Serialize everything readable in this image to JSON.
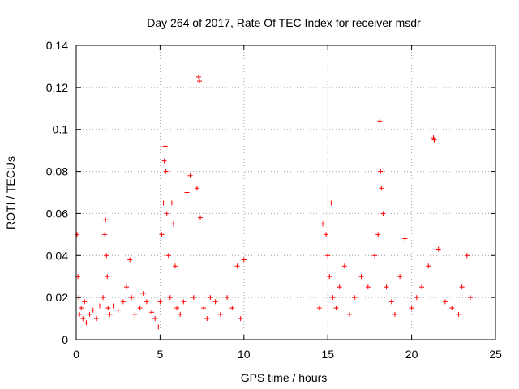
{
  "chart_data": {
    "type": "scatter",
    "title": "Day 264 of 2017, Rate Of TEC Index for receiver msdr",
    "xlabel": "GPS time / hours",
    "ylabel": "ROTI / TECUs",
    "xlim": [
      0,
      25
    ],
    "ylim": [
      0,
      0.14
    ],
    "xticks": [
      0,
      5,
      10,
      15,
      20,
      25
    ],
    "yticks": [
      0,
      0.02,
      0.04,
      0.06,
      0.08,
      0.1,
      0.12,
      0.14
    ],
    "xtick_labels": [
      "0",
      "5",
      "10",
      "15",
      "20",
      "25"
    ],
    "ytick_labels": [
      "0",
      "0.02",
      "0.04",
      "0.06",
      "0.08",
      "0.1",
      "0.12",
      "0.14"
    ],
    "grid": true,
    "marker": "+",
    "color": "#ff0000",
    "series": [
      {
        "name": "ROTI",
        "x": [
          0.0,
          0.05,
          0.1,
          0.15,
          0.2,
          0.3,
          0.4,
          0.5,
          0.6,
          0.8,
          1.0,
          1.2,
          1.4,
          1.6,
          1.7,
          1.75,
          1.8,
          1.85,
          1.9,
          2.0,
          2.2,
          2.5,
          2.8,
          3.0,
          3.2,
          3.3,
          3.5,
          3.8,
          4.0,
          4.2,
          4.5,
          4.7,
          4.9,
          5.0,
          5.1,
          5.2,
          5.25,
          5.3,
          5.35,
          5.4,
          5.5,
          5.6,
          5.7,
          5.8,
          5.9,
          6.0,
          6.2,
          6.4,
          6.6,
          6.8,
          7.0,
          7.2,
          7.3,
          7.35,
          7.4,
          7.6,
          7.8,
          8.0,
          8.3,
          8.6,
          9.0,
          9.3,
          9.6,
          9.8,
          10.0,
          14.5,
          14.7,
          14.9,
          15.0,
          15.1,
          15.2,
          15.3,
          15.5,
          15.7,
          16.0,
          16.3,
          16.6,
          17.0,
          17.4,
          17.8,
          18.0,
          18.1,
          18.15,
          18.2,
          18.3,
          18.5,
          18.8,
          19.0,
          19.3,
          19.6,
          20.0,
          20.3,
          20.6,
          21.0,
          21.3,
          21.35,
          21.6,
          22.0,
          22.4,
          22.8,
          23.0,
          23.3,
          23.5
        ],
        "y": [
          0.065,
          0.05,
          0.03,
          0.02,
          0.012,
          0.015,
          0.01,
          0.018,
          0.008,
          0.012,
          0.014,
          0.01,
          0.016,
          0.02,
          0.05,
          0.057,
          0.04,
          0.03,
          0.015,
          0.012,
          0.016,
          0.014,
          0.018,
          0.025,
          0.038,
          0.02,
          0.012,
          0.015,
          0.022,
          0.018,
          0.013,
          0.01,
          0.006,
          0.018,
          0.05,
          0.065,
          0.085,
          0.092,
          0.08,
          0.06,
          0.04,
          0.02,
          0.065,
          0.055,
          0.035,
          0.015,
          0.012,
          0.018,
          0.07,
          0.078,
          0.02,
          0.072,
          0.125,
          0.123,
          0.058,
          0.015,
          0.01,
          0.02,
          0.018,
          0.012,
          0.02,
          0.015,
          0.035,
          0.01,
          0.038,
          0.015,
          0.055,
          0.05,
          0.04,
          0.03,
          0.065,
          0.02,
          0.015,
          0.025,
          0.035,
          0.012,
          0.02,
          0.03,
          0.025,
          0.04,
          0.05,
          0.104,
          0.08,
          0.072,
          0.06,
          0.025,
          0.018,
          0.012,
          0.03,
          0.048,
          0.015,
          0.02,
          0.025,
          0.035,
          0.096,
          0.095,
          0.043,
          0.018,
          0.015,
          0.012,
          0.025,
          0.04,
          0.02
        ]
      }
    ]
  }
}
